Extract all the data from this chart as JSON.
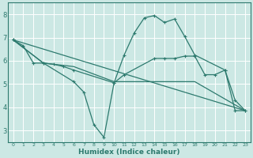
{
  "bg_color": "#cce8e4",
  "grid_color": "#ffffff",
  "line_color": "#2d7a6e",
  "xlabel": "Humidex (Indice chaleur)",
  "ylim": [
    2.5,
    8.5
  ],
  "xlim": [
    -0.5,
    23.5
  ],
  "yticks": [
    3,
    4,
    5,
    6,
    7,
    8
  ],
  "xticks": [
    0,
    1,
    2,
    3,
    4,
    5,
    6,
    7,
    8,
    9,
    10,
    11,
    12,
    13,
    14,
    15,
    16,
    17,
    18,
    19,
    20,
    21,
    22,
    23
  ],
  "line1_nomarker": {
    "x": [
      0,
      23
    ],
    "y": [
      6.9,
      3.85
    ]
  },
  "line2_nomarker": {
    "x": [
      0,
      3,
      6,
      10,
      18,
      23
    ],
    "y": [
      6.9,
      5.9,
      5.75,
      5.1,
      5.1,
      3.85
    ]
  },
  "line3_markers": {
    "x": [
      0,
      1,
      2,
      3,
      4,
      5,
      6,
      10,
      11,
      14,
      15,
      16,
      17,
      18,
      19,
      20,
      21,
      22,
      23
    ],
    "y": [
      6.9,
      6.65,
      5.9,
      5.9,
      5.85,
      5.75,
      5.6,
      5.05,
      5.4,
      6.1,
      6.1,
      6.1,
      6.2,
      6.2,
      5.4,
      5.4,
      5.6,
      3.85,
      3.85
    ]
  },
  "line4_markers": {
    "x": [
      0,
      3,
      6,
      7,
      8,
      9,
      10,
      11,
      12,
      13,
      14,
      15,
      16,
      17,
      18,
      21,
      22,
      23
    ],
    "y": [
      6.9,
      5.9,
      5.1,
      4.65,
      3.25,
      2.7,
      5.05,
      6.25,
      7.2,
      7.85,
      7.95,
      7.65,
      7.8,
      7.05,
      6.25,
      5.6,
      4.3,
      3.85
    ]
  }
}
